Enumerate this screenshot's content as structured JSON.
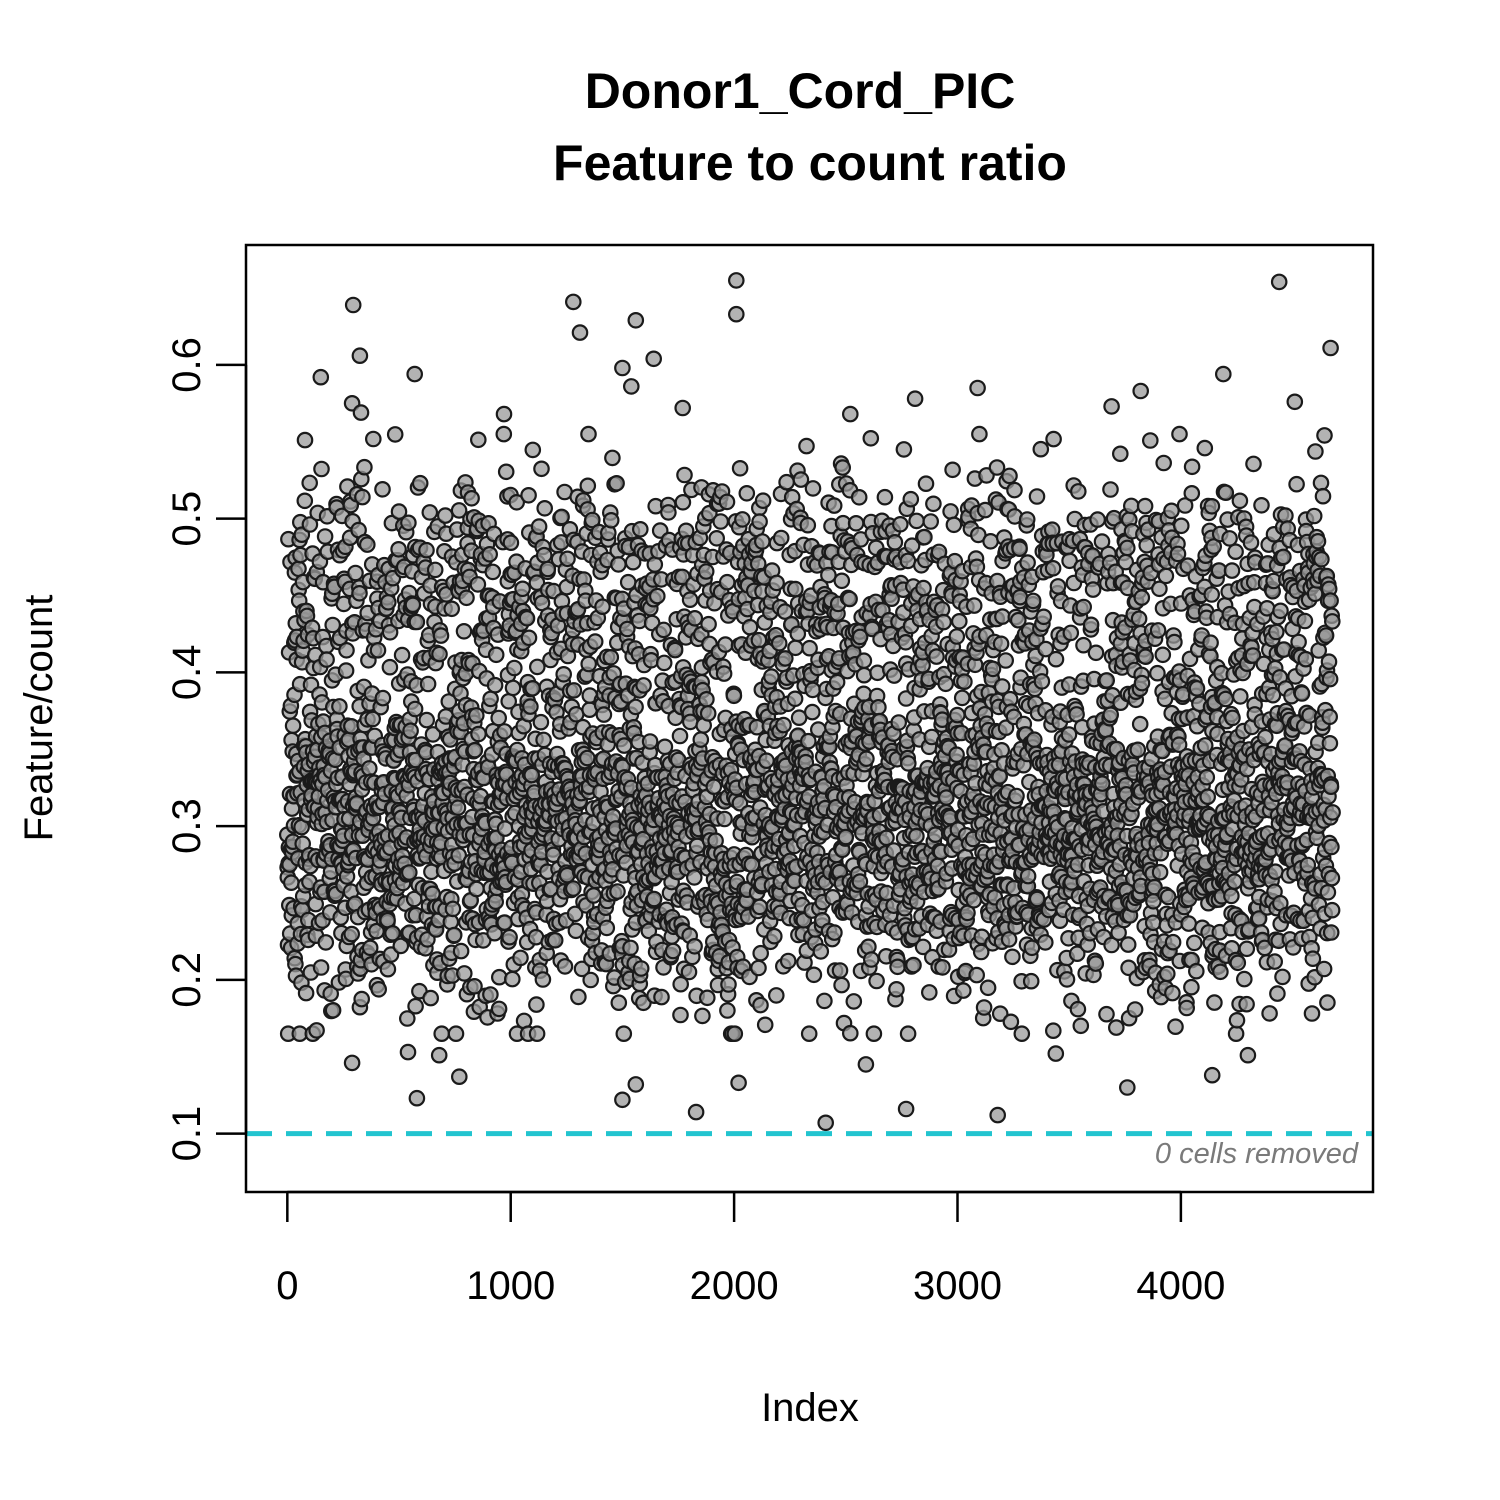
{
  "chart_data": {
    "type": "scatter",
    "title": "Donor1_Cord_PIC",
    "subtitle": "Feature to count ratio",
    "xlabel": "Index",
    "ylabel": "Feature/count",
    "xlim": [
      -185,
      4860
    ],
    "ylim": [
      0.062,
      0.678
    ],
    "x_ticks": [
      0,
      1000,
      2000,
      3000,
      4000
    ],
    "x_tick_labels": [
      "0",
      "1000",
      "2000",
      "3000",
      "4000"
    ],
    "y_ticks": [
      0.1,
      0.2,
      0.3,
      0.4,
      0.5,
      0.6
    ],
    "y_tick_labels": [
      "0.1",
      "0.2",
      "0.3",
      "0.4",
      "0.5",
      "0.6"
    ],
    "n_points": 4680,
    "point_distribution": {
      "core_center": 0.31,
      "core_spread": 0.045,
      "upper_band_center": 0.45,
      "upper_band_spread": 0.04,
      "min": 0.105,
      "max": 0.655
    },
    "outliers": [
      {
        "x": 295,
        "y": 0.639
      },
      {
        "x": 325,
        "y": 0.606
      },
      {
        "x": 150,
        "y": 0.592
      },
      {
        "x": 290,
        "y": 0.575
      },
      {
        "x": 330,
        "y": 0.569
      },
      {
        "x": 570,
        "y": 0.594
      },
      {
        "x": 1280,
        "y": 0.641
      },
      {
        "x": 1310,
        "y": 0.621
      },
      {
        "x": 1560,
        "y": 0.629
      },
      {
        "x": 1500,
        "y": 0.598
      },
      {
        "x": 1640,
        "y": 0.604
      },
      {
        "x": 1540,
        "y": 0.586
      },
      {
        "x": 1770,
        "y": 0.572
      },
      {
        "x": 970,
        "y": 0.568
      },
      {
        "x": 2010,
        "y": 0.655
      },
      {
        "x": 2010,
        "y": 0.633
      },
      {
        "x": 2520,
        "y": 0.568
      },
      {
        "x": 2810,
        "y": 0.578
      },
      {
        "x": 3090,
        "y": 0.585
      },
      {
        "x": 3690,
        "y": 0.573
      },
      {
        "x": 3820,
        "y": 0.583
      },
      {
        "x": 4190,
        "y": 0.594
      },
      {
        "x": 4440,
        "y": 0.654
      },
      {
        "x": 4510,
        "y": 0.576
      },
      {
        "x": 4670,
        "y": 0.611
      },
      {
        "x": 580,
        "y": 0.123
      },
      {
        "x": 1500,
        "y": 0.122
      },
      {
        "x": 1560,
        "y": 0.132
      },
      {
        "x": 1830,
        "y": 0.114
      },
      {
        "x": 2410,
        "y": 0.107
      },
      {
        "x": 2770,
        "y": 0.116
      },
      {
        "x": 3180,
        "y": 0.112
      },
      {
        "x": 3760,
        "y": 0.13
      },
      {
        "x": 4140,
        "y": 0.138
      },
      {
        "x": 2020,
        "y": 0.133
      },
      {
        "x": 540,
        "y": 0.153
      },
      {
        "x": 680,
        "y": 0.151
      },
      {
        "x": 770,
        "y": 0.137
      },
      {
        "x": 290,
        "y": 0.146
      },
      {
        "x": 4300,
        "y": 0.151
      },
      {
        "x": 3440,
        "y": 0.152
      },
      {
        "x": 2590,
        "y": 0.145
      }
    ],
    "threshold": {
      "y": 0.1,
      "color": "#22c4cf",
      "style": "dashed"
    },
    "annotation": "0 cells removed",
    "grid": false,
    "legend": "none",
    "point_color": "#9a9a9a",
    "point_edge_color": "#1a1a1a"
  }
}
